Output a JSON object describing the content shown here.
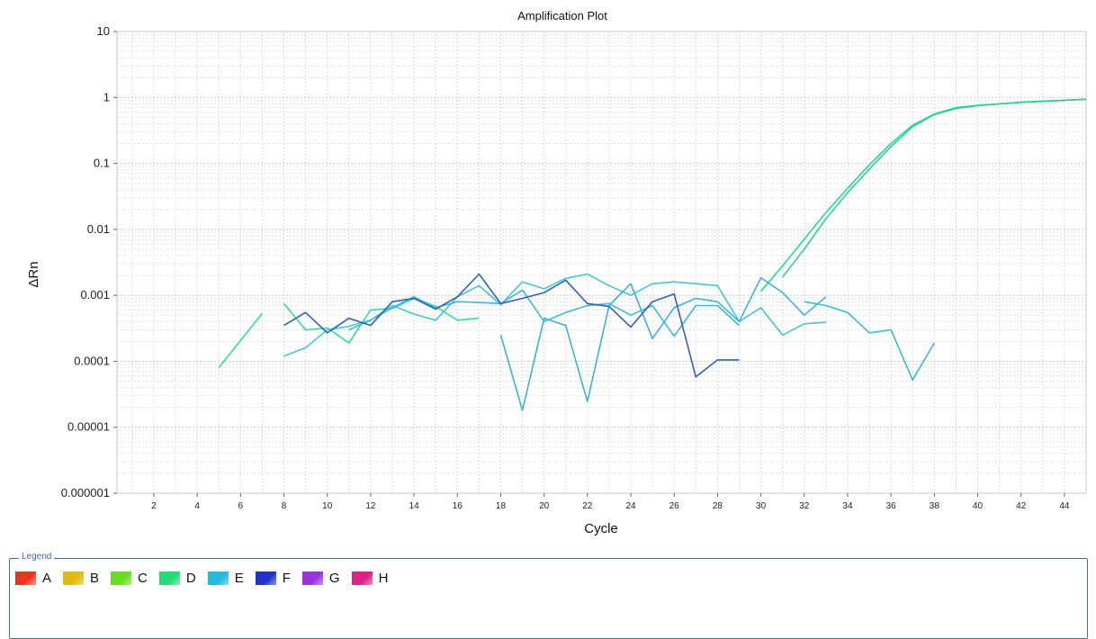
{
  "chart_data": {
    "type": "line",
    "title": "Amplification Plot",
    "xlabel": "Cycle",
    "ylabel": "ΔRn",
    "xlim": [
      0.3,
      45
    ],
    "ylim": [
      1e-06,
      10
    ],
    "yscale": "log",
    "grid": true,
    "x_ticks": [
      2,
      4,
      6,
      8,
      10,
      12,
      14,
      16,
      18,
      20,
      22,
      24,
      26,
      28,
      30,
      32,
      34,
      36,
      38,
      40,
      42,
      44
    ],
    "y_ticks": [
      {
        "value": 10,
        "label": "10"
      },
      {
        "value": 1,
        "label": "1"
      },
      {
        "value": 0.1,
        "label": "0.1"
      },
      {
        "value": 0.01,
        "label": "0.01"
      },
      {
        "value": 0.001,
        "label": "0.001"
      },
      {
        "value": 0.0001,
        "label": "0.0001"
      },
      {
        "value": 1e-05,
        "label": "0.00001"
      },
      {
        "value": 1e-06,
        "label": "0.000001"
      }
    ],
    "series": [
      {
        "color": "#22dd88",
        "segments": [
          [
            [
              30,
              0.00115
            ],
            [
              31,
              0.0028
            ],
            [
              32,
              0.0071
            ],
            [
              33,
              0.018
            ],
            [
              34,
              0.042
            ],
            [
              35,
              0.095
            ],
            [
              36,
              0.2
            ],
            [
              37,
              0.38
            ],
            [
              38,
              0.56
            ],
            [
              39,
              0.7
            ],
            [
              40,
              0.76
            ],
            [
              41,
              0.8
            ],
            [
              42,
              0.85
            ],
            [
              43,
              0.88
            ],
            [
              44,
              0.91
            ],
            [
              45,
              0.94
            ]
          ]
        ]
      },
      {
        "color": "#33cc99",
        "segments": [
          [
            [
              31,
              0.0019
            ],
            [
              32,
              0.005
            ],
            [
              33,
              0.0145
            ],
            [
              34,
              0.036
            ],
            [
              35,
              0.082
            ],
            [
              36,
              0.18
            ],
            [
              37,
              0.36
            ],
            [
              38,
              0.55
            ],
            [
              39,
              0.68
            ],
            [
              40,
              0.75
            ],
            [
              41,
              0.8
            ],
            [
              42,
              0.84
            ],
            [
              43,
              0.87
            ],
            [
              44,
              0.9
            ],
            [
              45,
              0.94
            ]
          ]
        ]
      },
      {
        "color": "#33dd99",
        "segments": [
          [
            [
              5,
              8e-05
            ],
            [
              7,
              0.00053
            ]
          ],
          [
            [
              8,
              0.00075
            ],
            [
              9,
              0.0003
            ],
            [
              10,
              0.00032
            ],
            [
              11,
              0.00019
            ],
            [
              12,
              0.0006
            ],
            [
              13,
              0.00063
            ],
            [
              14,
              0.0009
            ],
            [
              15,
              0.00068
            ],
            [
              16,
              0.00042
            ],
            [
              17,
              0.00045
            ]
          ]
        ]
      },
      {
        "color": "#44c8cc",
        "segments": [
          [
            [
              8,
              0.00012
            ],
            [
              9,
              0.00016
            ],
            [
              10,
              0.0003
            ],
            [
              11,
              0.00034
            ],
            [
              12,
              0.00042
            ],
            [
              13,
              0.0007
            ],
            [
              14,
              0.00052
            ],
            [
              15,
              0.00042
            ],
            [
              16,
              0.00095
            ],
            [
              17,
              0.0014
            ],
            [
              18,
              0.00072
            ],
            [
              19,
              0.0016
            ],
            [
              20,
              0.00125
            ],
            [
              21,
              0.0018
            ],
            [
              22,
              0.0021
            ],
            [
              23,
              0.0014
            ],
            [
              24,
              0.001
            ],
            [
              25,
              0.0015
            ],
            [
              26,
              0.0016
            ],
            [
              27,
              0.0015
            ],
            [
              28,
              0.0014
            ],
            [
              29,
              0.0004
            ],
            [
              30,
              0.00065
            ],
            [
              31,
              0.00025
            ],
            [
              32,
              0.00037
            ],
            [
              33,
              0.00039
            ]
          ]
        ]
      },
      {
        "color": "#3ab2dd",
        "segments": [
          [
            [
              18,
              0.00025
            ],
            [
              19,
              1.8e-05
            ],
            [
              20,
              0.00045
            ],
            [
              21,
              0.00035
            ],
            [
              22,
              2.45e-05
            ],
            [
              23,
              0.0007
            ],
            [
              24,
              0.0015
            ],
            [
              25,
              0.00022
            ],
            [
              26,
              0.00065
            ],
            [
              27,
              0.0009
            ],
            [
              28,
              0.0008
            ],
            [
              29,
              0.0004
            ],
            [
              30,
              0.00185
            ],
            [
              31,
              0.0011
            ],
            [
              32,
              0.0005
            ],
            [
              33,
              0.00095
            ]
          ]
        ]
      },
      {
        "color": "#39bbd6",
        "segments": [
          [
            [
              11,
              0.0003
            ],
            [
              12,
              0.00042
            ],
            [
              13,
              0.00065
            ],
            [
              14,
              0.00095
            ],
            [
              15,
              0.00065
            ],
            [
              16,
              0.0008
            ],
            [
              17,
              0.00078
            ],
            [
              18,
              0.00075
            ],
            [
              19,
              0.0012
            ],
            [
              20,
              0.0004
            ],
            [
              21,
              0.00055
            ],
            [
              22,
              0.0007
            ],
            [
              23,
              0.00075
            ],
            [
              24,
              0.0005
            ],
            [
              25,
              0.0007
            ],
            [
              26,
              0.00024
            ],
            [
              27,
              0.0007
            ],
            [
              28,
              0.0007
            ],
            [
              29,
              0.00035
            ]
          ],
          [
            [
              32,
              0.0008
            ],
            [
              33,
              0.0007
            ],
            [
              34,
              0.00055
            ],
            [
              35,
              0.00027
            ],
            [
              36,
              0.0003
            ],
            [
              37,
              5.2e-05
            ],
            [
              38,
              0.00019
            ]
          ]
        ]
      },
      {
        "color": "#3060b8",
        "segments": [
          [
            [
              8,
              0.00035
            ],
            [
              9,
              0.00055
            ],
            [
              10,
              0.00027
            ],
            [
              11,
              0.00045
            ],
            [
              12,
              0.00035
            ],
            [
              13,
              0.0008
            ],
            [
              14,
              0.0009
            ],
            [
              15,
              0.00062
            ],
            [
              16,
              0.00095
            ],
            [
              17,
              0.0021
            ],
            [
              18,
              0.00075
            ],
            [
              19,
              0.0009
            ],
            [
              20,
              0.0011
            ],
            [
              21,
              0.0017
            ],
            [
              22,
              0.00075
            ],
            [
              23,
              0.00068
            ],
            [
              24,
              0.00033
            ],
            [
              25,
              0.0008
            ],
            [
              26,
              0.00105
            ],
            [
              27,
              5.8e-05
            ],
            [
              28,
              0.000105
            ],
            [
              29,
              0.000105
            ]
          ]
        ]
      }
    ]
  },
  "legend": {
    "title": "Legend",
    "items": [
      {
        "label": "A",
        "color": "#ee3322"
      },
      {
        "label": "B",
        "color": "#ddbb11"
      },
      {
        "label": "C",
        "color": "#66dd22"
      },
      {
        "label": "D",
        "color": "#22dd77"
      },
      {
        "label": "E",
        "color": "#22bbdd"
      },
      {
        "label": "F",
        "color": "#2233cc"
      },
      {
        "label": "G",
        "color": "#9933dd"
      },
      {
        "label": "H",
        "color": "#dd2288"
      }
    ]
  }
}
